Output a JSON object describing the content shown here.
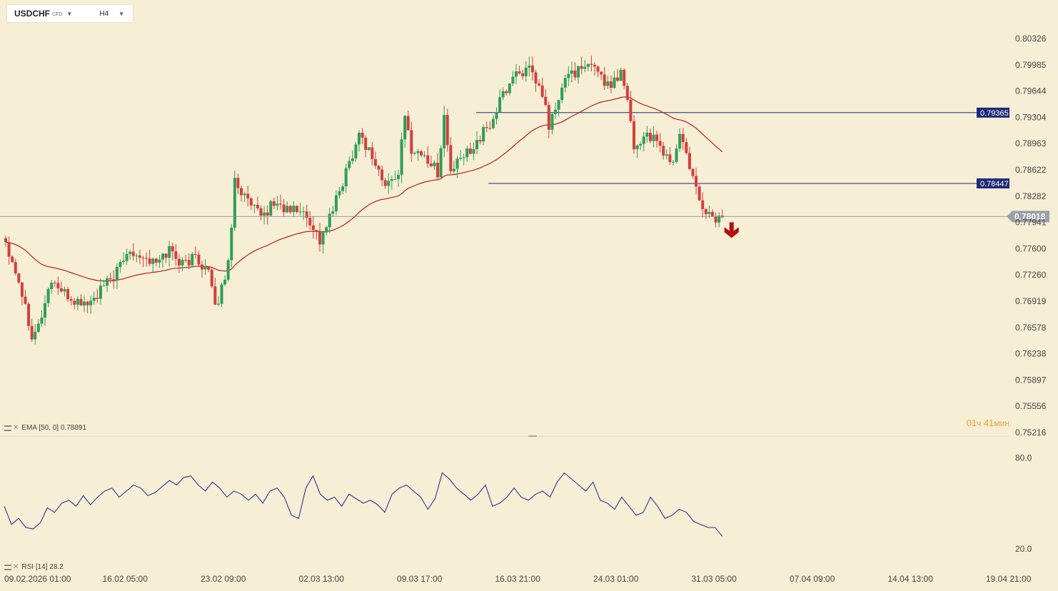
{
  "toolbar": {
    "symbol": "USDCHF",
    "symbol_tag": "CFD",
    "timeframe": "H4"
  },
  "indicators": {
    "ema_label": "EMA [50, 0] 0.78891",
    "rsi_label": "RSI [14] 28.2"
  },
  "timer": {
    "hours": "01",
    "hours_unit": "ч",
    "minutes": "41",
    "minutes_unit": "мин"
  },
  "colors": {
    "background": "#f7eed6",
    "bull": "#2e9e57",
    "bear": "#d2403a",
    "ema": "#b32020",
    "rsi": "#2a3a8c",
    "level_line": "#1e2a78",
    "price_tag": "#9aa0a8",
    "arrow": "#b01010"
  },
  "chart_data": {
    "type": "candlestick",
    "symbol": "USDCHF",
    "timeframe": "H4",
    "y_axis_ticks": [
      "0.80326",
      "0.79985",
      "0.79644",
      "0.79304",
      "0.78963",
      "0.78622",
      "0.78282",
      "0.77941",
      "0.77600",
      "0.77260",
      "0.76919",
      "0.76578",
      "0.76238",
      "0.75897",
      "0.75556",
      "0.75216"
    ],
    "ylim": [
      0.75216,
      0.80326
    ],
    "x_axis_ticks": [
      "09.02.2026 01:00",
      "16.02 05:00",
      "23.02 09:00",
      "02.03 13:00",
      "09.03 17:00",
      "16.03 21:00",
      "24.03 01:00",
      "31.03 05:00",
      "07.04 09:00",
      "14.04 13:00",
      "19.04 21:00"
    ],
    "current_price": "0.78018",
    "levels": [
      {
        "label": "0.79365",
        "value": 0.79365,
        "from": "16.03 21:00",
        "to": "19.04 21:00"
      },
      {
        "label": "0.78447",
        "value": 0.78447,
        "from": "16.03 21:00",
        "to": "19.04 21:00"
      }
    ],
    "ema": {
      "period": 50,
      "last": 0.78891
    },
    "rsi": {
      "period": 14,
      "last": 28.2,
      "ticks": [
        "80.0",
        "20.0"
      ],
      "ylim": [
        10,
        90
      ]
    },
    "signal": "down-arrow",
    "anchors": [
      [
        0,
        0.777
      ],
      [
        4,
        0.772
      ],
      [
        8,
        0.765
      ],
      [
        10,
        0.766
      ],
      [
        14,
        0.772
      ],
      [
        18,
        0.77
      ],
      [
        22,
        0.769
      ],
      [
        26,
        0.769
      ],
      [
        30,
        0.771
      ],
      [
        34,
        0.773
      ],
      [
        38,
        0.776
      ],
      [
        42,
        0.775
      ],
      [
        46,
        0.774
      ],
      [
        50,
        0.776
      ],
      [
        54,
        0.774
      ],
      [
        58,
        0.775
      ],
      [
        62,
        0.773
      ],
      [
        64,
        0.768
      ],
      [
        68,
        0.774
      ],
      [
        70,
        0.785
      ],
      [
        74,
        0.782
      ],
      [
        78,
        0.78
      ],
      [
        82,
        0.782
      ],
      [
        86,
        0.781
      ],
      [
        90,
        0.781
      ],
      [
        92,
        0.78
      ],
      [
        94,
        0.779
      ],
      [
        96,
        0.777
      ],
      [
        100,
        0.781
      ],
      [
        104,
        0.786
      ],
      [
        108,
        0.791
      ],
      [
        112,
        0.788
      ],
      [
        116,
        0.784
      ],
      [
        120,
        0.786
      ],
      [
        122,
        0.793
      ],
      [
        124,
        0.789
      ],
      [
        128,
        0.788
      ],
      [
        132,
        0.786
      ],
      [
        134,
        0.793
      ],
      [
        136,
        0.786
      ],
      [
        140,
        0.788
      ],
      [
        144,
        0.79
      ],
      [
        148,
        0.792
      ],
      [
        152,
        0.796
      ],
      [
        156,
        0.799
      ],
      [
        160,
        0.799
      ],
      [
        164,
        0.796
      ],
      [
        166,
        0.792
      ],
      [
        168,
        0.794
      ],
      [
        172,
        0.799
      ],
      [
        176,
        0.799
      ],
      [
        180,
        0.8
      ],
      [
        184,
        0.797
      ],
      [
        188,
        0.799
      ],
      [
        190,
        0.796
      ],
      [
        192,
        0.789
      ],
      [
        196,
        0.791
      ],
      [
        200,
        0.789
      ],
      [
        204,
        0.787
      ],
      [
        206,
        0.791
      ],
      [
        208,
        0.788
      ],
      [
        210,
        0.785
      ],
      [
        212,
        0.782
      ],
      [
        216,
        0.78
      ],
      [
        219,
        0.7797
      ]
    ],
    "rsi_series": [
      48,
      36,
      40,
      34,
      33,
      37,
      47,
      44,
      50,
      52,
      48,
      55,
      49,
      54,
      58,
      60,
      54,
      58,
      62,
      60,
      55,
      57,
      61,
      65,
      62,
      67,
      68,
      62,
      58,
      64,
      60,
      54,
      58,
      56,
      52,
      56,
      50,
      58,
      60,
      54,
      42,
      40,
      60,
      68,
      56,
      52,
      54,
      48,
      56,
      53,
      50,
      52,
      49,
      44,
      56,
      60,
      62,
      58,
      54,
      46,
      53,
      70,
      66,
      60,
      56,
      52,
      56,
      62,
      48,
      50,
      54,
      60,
      54,
      52,
      56,
      58,
      54,
      64,
      70,
      66,
      62,
      58,
      64,
      52,
      50,
      46,
      54,
      48,
      42,
      44,
      54,
      48,
      40,
      42,
      46,
      44,
      38,
      36,
      34,
      34,
      28.2
    ],
    "rsi_last": 28.2
  }
}
